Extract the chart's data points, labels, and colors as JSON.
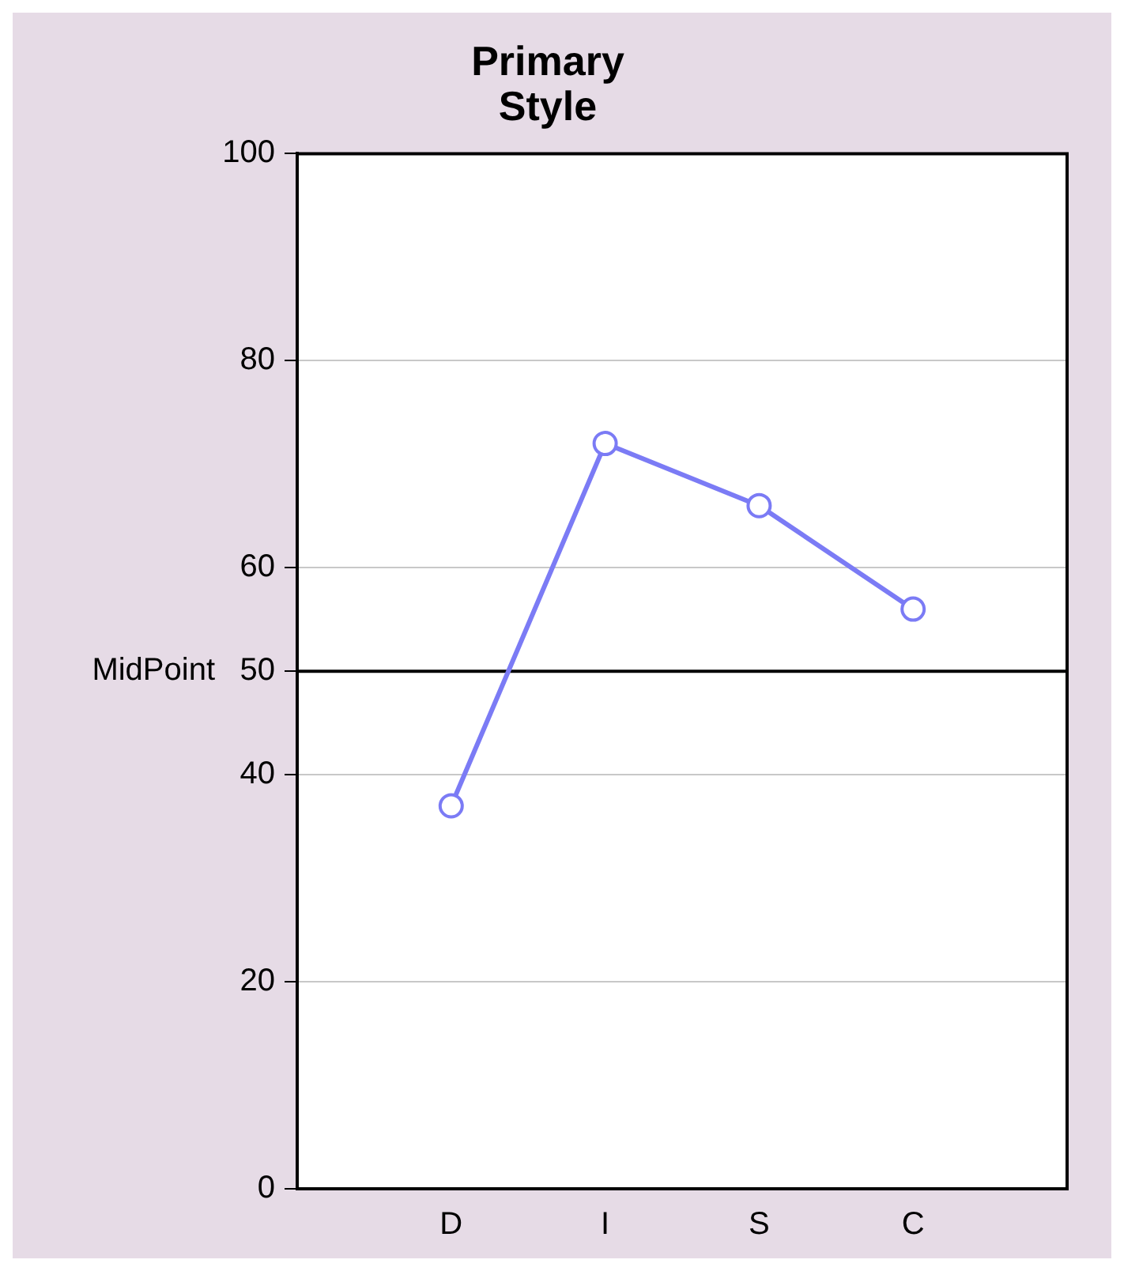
{
  "chart_data": {
    "type": "line",
    "title": "Primary Style",
    "categories": [
      "D",
      "I",
      "S",
      "C"
    ],
    "series": [
      {
        "color": "#7b7bf5",
        "values": [
          37,
          72,
          66,
          56
        ]
      }
    ],
    "ylim": [
      0,
      100
    ],
    "yticks": [
      0,
      20,
      40,
      50,
      60,
      80,
      100
    ],
    "grid": "y",
    "marker": "circle",
    "legend": false,
    "ref_lines": [
      {
        "axis": "y",
        "value": 50,
        "label": "MidPoint",
        "color": "#000000"
      }
    ]
  }
}
